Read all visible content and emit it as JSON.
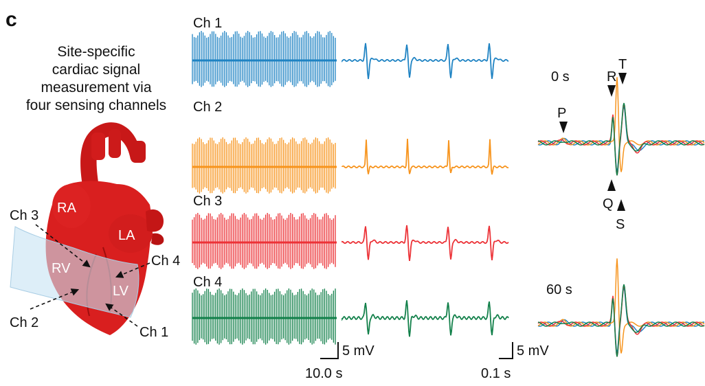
{
  "panel_label": "c",
  "intro": {
    "line1": "Site-specific",
    "line2": "cardiac signal",
    "line3": "measurement via",
    "line4": "four sensing channels"
  },
  "heart": {
    "chambers": {
      "ra": "RA",
      "la": "LA",
      "rv": "RV",
      "lv": "LV"
    },
    "pointers": {
      "ch3": "Ch 3",
      "ch4": "Ch 4",
      "ch2": "Ch 2",
      "ch1": "Ch 1"
    }
  },
  "channels": [
    {
      "label": "Ch 1",
      "color": "#1f83c3"
    },
    {
      "label": "Ch 2",
      "color": "#f7941d"
    },
    {
      "label": "Ch 3",
      "color": "#ec3237"
    },
    {
      "label": "Ch 4",
      "color": "#12804a"
    }
  ],
  "scalebars": {
    "long_v": "5 mV",
    "long_t": "10.0 s",
    "short_v": "5 mV",
    "short_t": "0.1 s"
  },
  "overlay": {
    "time_top": "0 s",
    "time_bottom": "60 s",
    "waves": {
      "p": "P",
      "q": "Q",
      "r": "R",
      "s": "S",
      "t": "T"
    }
  },
  "colors": {
    "heart": "#d91f1f",
    "heart_dark": "#a60f0f",
    "patch": "#c7e3f3",
    "text": "#111111"
  }
}
